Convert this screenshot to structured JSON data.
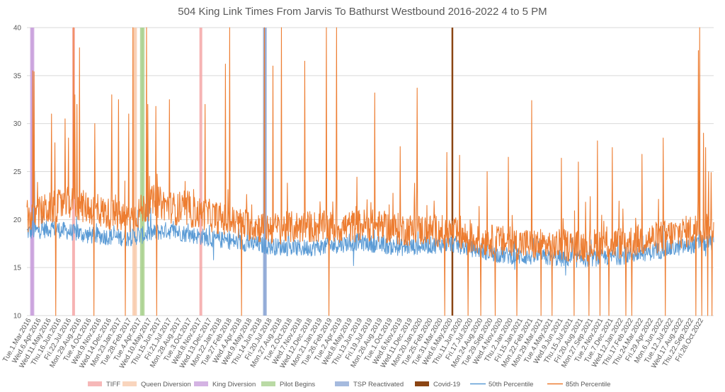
{
  "chart_data": {
    "type": "line",
    "title": "504 King Link Times From Jarvis To Bathurst Westbound 2016-2022 4 to 5 PM",
    "xlabel": "",
    "ylabel": "",
    "ylim": [
      10,
      40
    ],
    "y_ticks": [
      10,
      15,
      20,
      25,
      30,
      35,
      40
    ],
    "grid": true,
    "legend_position": "bottom",
    "x_tick_labels": [
      "Tue.1.Mar.2016",
      "Wed.6.Apr.2016",
      "Wed.11.May.2016",
      "Thu.16.Jun.2016",
      "Fri.22.Jul.2016",
      "Mon.29.Aug.2016",
      "Tue.4.Oct.2016",
      "Wed.9.Nov.2016",
      "Wed.14.Dec.2016",
      "Mon.23.Jan.2017",
      "Tue.28.Feb.2017",
      "Tue.4.Apr.2017",
      "Wed.10.May.2017",
      "Thu.15.Jun.2017",
      "Fri.21.Jul.2017",
      "Mon.28.Aug.2017",
      "Tue.3.Oct.2017",
      "Wed.8.Nov.2017",
      "Wed.13.Dec.2017",
      "Mon.22.Jan.2018",
      "Tue.27.Feb.2018",
      "Wed.4.Apr.2018",
      "Wed.9.May.2018",
      "Thu.14.Jun.2018",
      "Fri.20.Jul.2018",
      "Mon.27.Aug.2018",
      "Tue.2.Oct.2018",
      "Wed.7.Nov.2018",
      "Wed.12.Dec.2018",
      "Mon.21.Jan.2019",
      "Tue.26.Feb.2019",
      "Tue.2.Apr.2019",
      "Wed.8.May.2019",
      "Thu.13.Jun.2019",
      "Fri.19.Jul.2019",
      "Mon.26.Aug.2019",
      "Tue.1.Oct.2019",
      "Wed.6.Nov.2019",
      "Wed.11.Dec.2019",
      "Mon.20.Jan.2020",
      "Tue.25.Feb.2020",
      "Tue.31.Mar.2020",
      "Wed.6.May.2020",
      "Thu.11.Jun.2020",
      "Fri.17.Jul.2020",
      "Mon.24.Aug.2020",
      "Tue.29.Sep.2020",
      "Wed.4.Nov.2020",
      "Thu.2.Jan.2020",
      "Fri.15.Jan.2021",
      "Mon.22.Feb.2021",
      "Mon.29.Mar.2021",
      "Tue.4.May.2021",
      "Wed.9.Jun.2021",
      "Thu.15.Jul.2021",
      "Fri.20.Aug.2021",
      "Mon.27.Sep.2021",
      "Tue.2.Nov.2021",
      "Tue.7.Dec.2021",
      "Wed.12.Jan.2022",
      "Thu.17.Feb.2022",
      "Thu.24.Mar.2022",
      "Fri.29.Apr.2022",
      "Mon.6.Jun.2022",
      "Tue.12.Jul.2022",
      "Wed.17.Aug.2022",
      "Thu.22.Sep.2022",
      "Fri.28.Oct.2022"
    ],
    "n_points": 1620,
    "series": [
      {
        "name": "50th Percentile",
        "color": "#5B9BD5",
        "baseline": [
          [
            0,
            18.6
          ],
          [
            60,
            19.0
          ],
          [
            140,
            18.3
          ],
          [
            240,
            18.0
          ],
          [
            330,
            18.8
          ],
          [
            440,
            17.9
          ],
          [
            560,
            17.2
          ],
          [
            640,
            16.9
          ],
          [
            700,
            17.1
          ],
          [
            780,
            17.6
          ],
          [
            880,
            17.0
          ],
          [
            1000,
            17.4
          ],
          [
            1060,
            16.8
          ],
          [
            1120,
            16.2
          ],
          [
            1200,
            16.0
          ],
          [
            1300,
            15.8
          ],
          [
            1400,
            16.1
          ],
          [
            1480,
            16.6
          ],
          [
            1560,
            17.2
          ],
          [
            1619,
            17.6
          ]
        ],
        "spikes": [
          [
            14,
            26.8
          ],
          [
            18,
            25.0
          ],
          [
            60,
            20.4
          ],
          [
            120,
            19.5
          ],
          [
            262,
            21.0
          ],
          [
            285,
            24.3
          ],
          [
            430,
            19.4
          ],
          [
            520,
            20.0
          ],
          [
            760,
            18.5
          ],
          [
            1500,
            19.5
          ],
          [
            1585,
            30.3
          ]
        ],
        "dips": [
          [
            440,
            15.8
          ],
          [
            770,
            15.2
          ],
          [
            1150,
            14.8
          ],
          [
            1270,
            14.2
          ],
          [
            1600,
            16.2
          ]
        ]
      },
      {
        "name": "85th Percentile",
        "color": "#ED7D31",
        "baseline": [
          [
            0,
            20.0
          ],
          [
            40,
            20.8
          ],
          [
            100,
            21.6
          ],
          [
            180,
            20.6
          ],
          [
            240,
            19.8
          ],
          [
            300,
            21.8
          ],
          [
            360,
            20.8
          ],
          [
            420,
            20.4
          ],
          [
            500,
            19.4
          ],
          [
            580,
            18.9
          ],
          [
            660,
            19.1
          ],
          [
            740,
            19.0
          ],
          [
            800,
            19.3
          ],
          [
            880,
            18.8
          ],
          [
            960,
            18.7
          ],
          [
            1000,
            18.5
          ],
          [
            1040,
            17.9
          ],
          [
            1120,
            17.5
          ],
          [
            1200,
            17.2
          ],
          [
            1300,
            17.1
          ],
          [
            1400,
            17.4
          ],
          [
            1480,
            17.9
          ],
          [
            1560,
            18.6
          ],
          [
            1619,
            19.4
          ]
        ],
        "spikes": [
          [
            14,
            35.5
          ],
          [
            17,
            35.4
          ],
          [
            58,
            31.0
          ],
          [
            66,
            28.0
          ],
          [
            90,
            30.5
          ],
          [
            98,
            28.5
          ],
          [
            110,
            41.0
          ],
          [
            113,
            33.0
          ],
          [
            118,
            32.0
          ],
          [
            124,
            37.9
          ],
          [
            160,
            30.0
          ],
          [
            200,
            33.0
          ],
          [
            216,
            32.5
          ],
          [
            240,
            31.0
          ],
          [
            250,
            41.0
          ],
          [
            282,
            42.0
          ],
          [
            285,
            32.0
          ],
          [
            304,
            31.8
          ],
          [
            336,
            32.5
          ],
          [
            420,
            32.0
          ],
          [
            468,
            36.2
          ],
          [
            478,
            41.0
          ],
          [
            560,
            40.0
          ],
          [
            580,
            36.0
          ],
          [
            600,
            40.0
          ],
          [
            655,
            36.5
          ],
          [
            706,
            41.0
          ],
          [
            730,
            41.0
          ],
          [
            820,
            33.2
          ],
          [
            880,
            27.6
          ],
          [
            920,
            33.7
          ],
          [
            990,
            27.0
          ],
          [
            1020,
            26.7
          ],
          [
            1085,
            25.0
          ],
          [
            1135,
            26.5
          ],
          [
            1190,
            32.4
          ],
          [
            1260,
            26.4
          ],
          [
            1300,
            26.0
          ],
          [
            1345,
            28.2
          ],
          [
            1380,
            27.5
          ],
          [
            1450,
            26.8
          ],
          [
            1500,
            28.5
          ],
          [
            1583,
            37.6
          ],
          [
            1586,
            40.5
          ],
          [
            1595,
            29.0
          ],
          [
            1600,
            27.5
          ],
          [
            1607,
            25.0
          ],
          [
            1613,
            24.9
          ]
        ],
        "dips": [
          [
            68,
            10.0
          ],
          [
            158,
            10.0
          ],
          [
            232,
            10.0
          ],
          [
            306,
            10.0
          ],
          [
            506,
            10.0
          ],
          [
            712,
            10.0
          ],
          [
            985,
            10.0
          ],
          [
            1040,
            10.0
          ],
          [
            1070,
            10.0
          ],
          [
            1104,
            10.0
          ],
          [
            1155,
            10.0
          ],
          [
            1212,
            10.0
          ],
          [
            1238,
            10.0
          ],
          [
            1290,
            10.0
          ],
          [
            1325,
            10.0
          ],
          [
            1351,
            10.0
          ],
          [
            1372,
            10.0
          ],
          [
            1412,
            10.0
          ],
          [
            1426,
            10.0
          ],
          [
            1505,
            10.0
          ],
          [
            1577,
            10.0
          ],
          [
            1591,
            10.0
          ],
          [
            1605,
            10.0
          ],
          [
            1615,
            10.0
          ]
        ]
      }
    ],
    "event_markers": [
      {
        "name": "TIFF",
        "color": "#F4A6A6",
        "pattern": "hatch-diag",
        "positions": [
          110,
          410
        ]
      },
      {
        "name": "Queen Diversion",
        "color": "#F8CBAD",
        "pattern": "hatch-diag",
        "positions": [
          252,
          256
        ]
      },
      {
        "name": "King Diversion",
        "color": "#C9A0DC",
        "pattern": "hatch-diag",
        "positions": [
          11,
          14
        ]
      },
      {
        "name": "Pilot Begins",
        "color": "#A9D18E",
        "pattern": "hatch-diag",
        "positions": [
          270,
          274
        ]
      },
      {
        "name": "TSP Reactivated",
        "color": "#8FA9D6",
        "pattern": "hatch-cross",
        "positions": [
          560,
          562
        ]
      },
      {
        "name": "Covid-19",
        "color": "#8B4513",
        "pattern": "solid",
        "positions": [
          1003
        ]
      }
    ]
  }
}
